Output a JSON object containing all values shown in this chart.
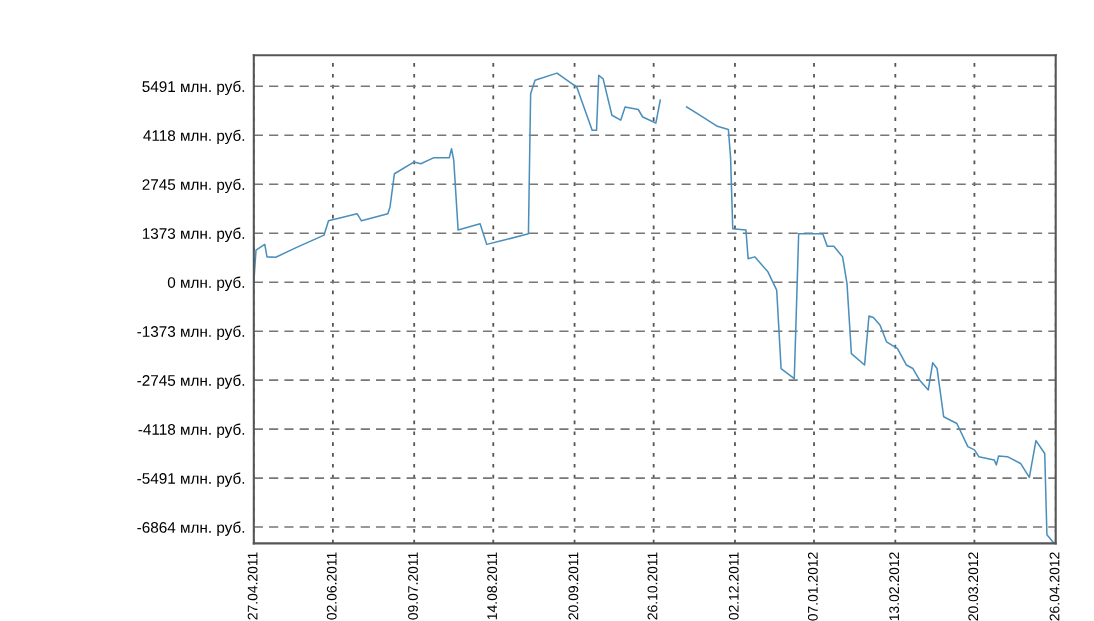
{
  "chart_data": {
    "type": "line",
    "x": [
      "2011-04-27",
      "2011-04-28",
      "2011-05-02",
      "2011-05-03",
      "2011-05-07",
      "2011-05-17",
      "2011-05-29",
      "2011-05-31",
      "2011-06-13",
      "2011-06-15",
      "2011-06-27",
      "2011-06-28",
      "2011-06-30",
      "2011-07-09",
      "2011-07-12",
      "2011-07-18",
      "2011-07-25",
      "2011-07-26",
      "2011-07-27",
      "2011-07-29",
      "2011-08-08",
      "2011-08-11",
      "2011-08-19",
      "2011-08-30",
      "2011-08-31",
      "2011-09-02",
      "2011-09-12",
      "2011-09-21",
      "2011-09-28",
      "2011-09-30",
      "2011-10-01",
      "2011-10-03",
      "2011-10-07",
      "2011-10-11",
      "2011-10-13",
      "2011-10-19",
      "2011-10-21",
      "2011-10-27",
      "2011-10-29",
      "2011-10-31",
      "2011-11-05",
      "2011-11-09",
      "2011-11-10",
      "2011-11-16",
      "2011-11-24",
      "2011-11-29",
      "2011-11-30",
      "2011-12-01",
      "2011-12-07",
      "2011-12-08",
      "2011-12-11",
      "2011-12-17",
      "2011-12-21",
      "2011-12-23",
      "2011-12-29",
      "2011-12-30",
      "2011-12-31",
      "2012-01-09",
      "2012-01-11",
      "2012-01-13",
      "2012-01-16",
      "2012-01-20",
      "2012-01-22",
      "2012-01-24",
      "2012-01-30",
      "2012-02-01",
      "2012-02-03",
      "2012-02-06",
      "2012-02-09",
      "2012-02-14",
      "2012-02-18",
      "2012-02-21",
      "2012-02-24",
      "2012-02-28",
      "2012-03-01",
      "2012-03-03",
      "2012-03-06",
      "2012-03-12",
      "2012-03-17",
      "2012-03-20",
      "2012-03-22",
      "2012-03-29",
      "2012-03-30",
      "2012-03-31",
      "2012-04-04",
      "2012-04-10",
      "2012-04-14",
      "2012-04-17",
      "2012-04-21",
      "2012-04-22",
      "2012-04-25"
    ],
    "series": [
      {
        "color": "#4a8fbc",
        "values": [
          0,
          900,
          1060,
          710,
          700,
          990,
          1320,
          1720,
          1920,
          1720,
          1920,
          2110,
          3040,
          3370,
          3320,
          3490,
          3490,
          3740,
          3420,
          1460,
          1640,
          1060,
          1180,
          1360,
          5280,
          5660,
          5860,
          5470,
          4260,
          4260,
          5800,
          5700,
          4680,
          4540,
          4910,
          4840,
          4630,
          4460,
          5100,
          null,
          null,
          null,
          4910,
          4680,
          4370,
          4280,
          3510,
          1500,
          1460,
          660,
          710,
          290,
          -220,
          -2420,
          -2700,
          -690,
          1360,
          1360,
          1350,
          1010,
          1010,
          710,
          -40,
          -2000,
          -2320,
          -950,
          -990,
          -1200,
          -1670,
          -1860,
          -2320,
          -2420,
          -2740,
          -3020,
          -2260,
          -2420,
          -3770,
          -3960,
          -4610,
          -4700,
          -4890,
          -4980,
          -5120,
          -4870,
          -4890,
          -5080,
          -5470,
          -4440,
          -4800,
          -7080,
          -7300
        ]
      }
    ],
    "xlim": [
      "2011-04-27",
      "2012-04-26"
    ],
    "xticks": [
      {
        "value": "2011-04-27",
        "label": "27.04.2011"
      },
      {
        "value": "2011-06-02",
        "label": "02.06.2011"
      },
      {
        "value": "2011-07-09",
        "label": "09.07.2011"
      },
      {
        "value": "2011-08-14",
        "label": "14.08.2011"
      },
      {
        "value": "2011-09-20",
        "label": "20.09.2011"
      },
      {
        "value": "2011-10-26",
        "label": "26.10.2011"
      },
      {
        "value": "2011-12-02",
        "label": "02.12.2011"
      },
      {
        "value": "2012-01-07",
        "label": "07.01.2012"
      },
      {
        "value": "2012-02-13",
        "label": "13.02.2012"
      },
      {
        "value": "2012-03-20",
        "label": "20.03.2012"
      },
      {
        "value": "2012-04-26",
        "label": "26.04.2012"
      }
    ],
    "ylim": [
      -7320,
      6360
    ],
    "yticks": [
      {
        "value": -6864,
        "label": "-6864 млн. руб."
      },
      {
        "value": -5491,
        "label": "-5491 млн. руб."
      },
      {
        "value": -4118,
        "label": "-4118 млн. руб."
      },
      {
        "value": -2745,
        "label": "-2745 млн. руб."
      },
      {
        "value": -1373,
        "label": "-1373 млн. руб."
      },
      {
        "value": 0,
        "label": "0 млн. руб."
      },
      {
        "value": 1373,
        "label": "1373 млн. руб."
      },
      {
        "value": 2745,
        "label": "2745 млн. руб."
      },
      {
        "value": 4118,
        "label": "4118 млн. руб."
      },
      {
        "value": 5491,
        "label": "5491 млн. руб."
      }
    ],
    "grid": true,
    "line_style": "solid",
    "marker": "none"
  }
}
